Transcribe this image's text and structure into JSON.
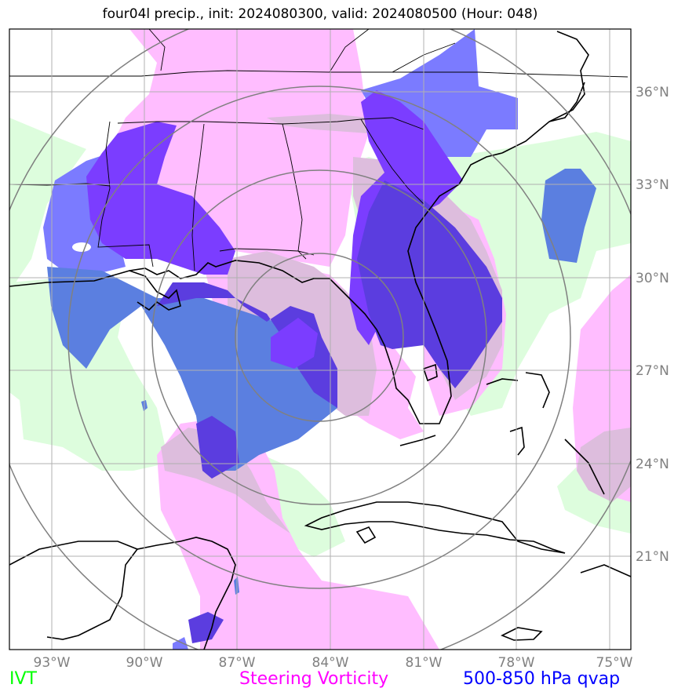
{
  "title": "four04l precip., init: 2024080300, valid: 2024080500 (Hour: 048)",
  "lon_labels": [
    "93°W",
    "90°W",
    "87°W",
    "84°W",
    "81°W",
    "78°W",
    "75°W"
  ],
  "lat_labels": [
    "36°N",
    "33°N",
    "30°N",
    "27°N",
    "24°N",
    "21°N"
  ],
  "legend": {
    "ivt": {
      "label": "IVT",
      "color": "#00ff00"
    },
    "vorticity": {
      "label": "Steering Vorticity",
      "color": "#ff00ff"
    },
    "qvap": {
      "label": "500-850 hPa qvap",
      "color": "#0000ff"
    }
  },
  "colors": {
    "ivt_fill": "#ddfddd",
    "vorticity_fill": "#ffbdff",
    "overlap_fill": "#ddbddd",
    "qvap_light": "#7b7bff",
    "qvap_medium": "#5b7fe0",
    "qvap_dark": "#7b3dff",
    "qvap_darkest": "#5b3ddf",
    "gridline": "#b0b0b0",
    "range_rings": "#808080",
    "coastline": "#000000"
  },
  "range_rings": 4
}
